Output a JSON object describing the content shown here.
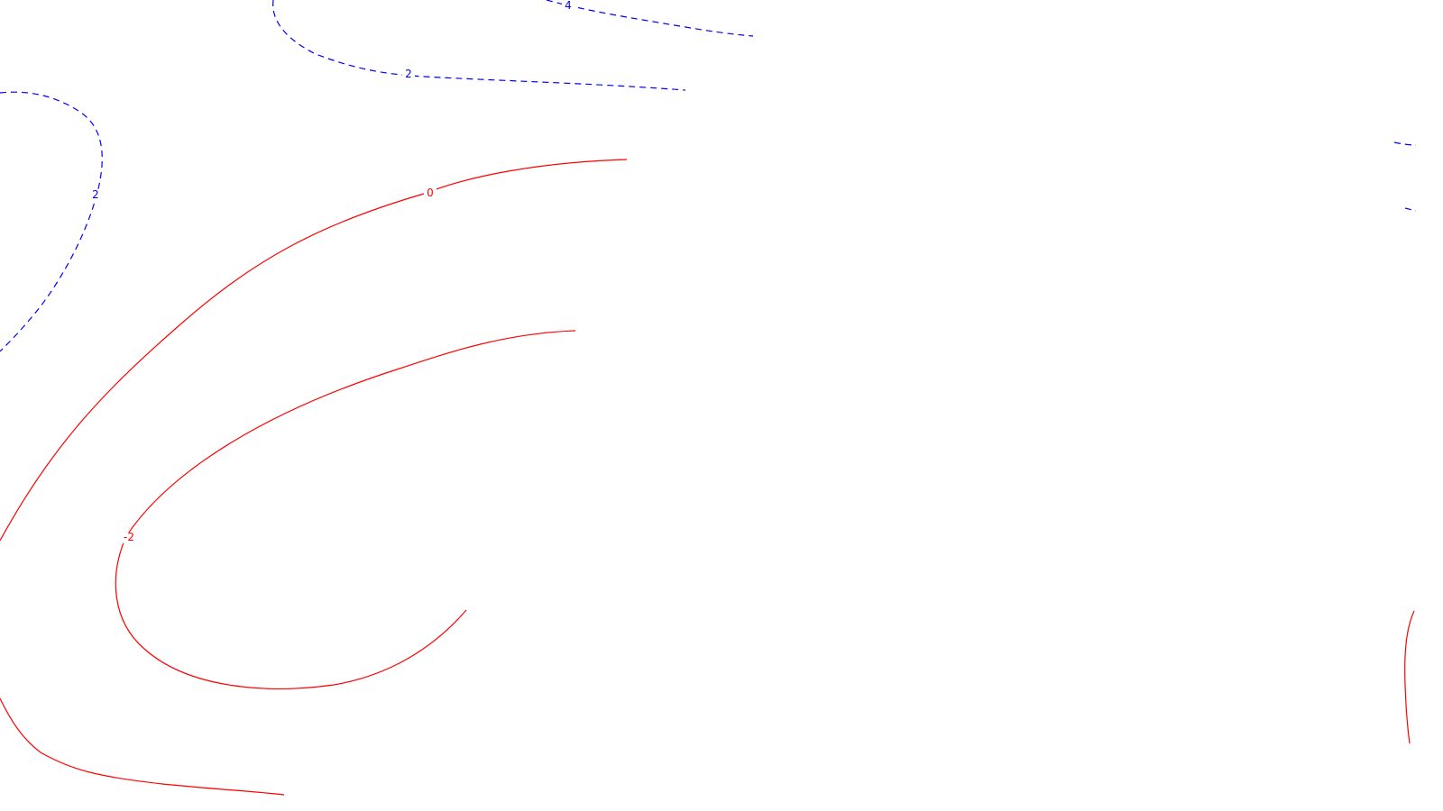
{
  "chart_data": {
    "type": "contour",
    "colors": {
      "positive": "#0000ff",
      "non_positive": "#ff0000",
      "background": "#ffffff"
    },
    "line_styles": {
      "positive": "dashed",
      "non_positive": "solid"
    },
    "contours": [
      {
        "level": "4",
        "sign": "positive",
        "label": "4"
      },
      {
        "level": "2",
        "sign": "positive",
        "label": "2"
      },
      {
        "level": "2",
        "sign": "positive",
        "label": "2"
      },
      {
        "level": "2",
        "sign": "positive",
        "label": ""
      },
      {
        "level": "0",
        "sign": "non_positive",
        "label": "0"
      },
      {
        "level": "-2",
        "sign": "non_positive",
        "label": "-2"
      },
      {
        "level": "-2",
        "sign": "non_positive",
        "label": ""
      },
      {
        "level": "0",
        "sign": "non_positive",
        "label": ""
      }
    ]
  }
}
